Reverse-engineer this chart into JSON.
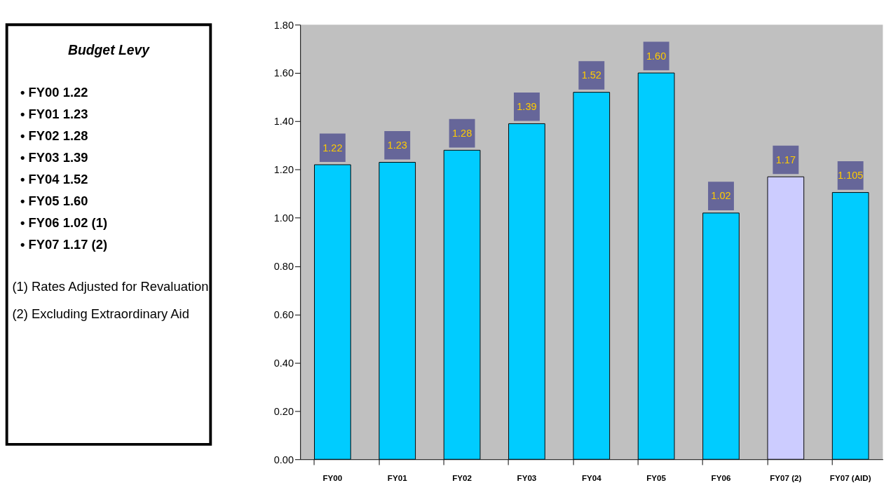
{
  "chart_data": {
    "type": "bar",
    "categories": [
      "FY00",
      "FY01",
      "FY02",
      "FY03",
      "FY04",
      "FY05",
      "FY06",
      "FY07 (2)",
      "FY07 (AID)"
    ],
    "values": [
      1.22,
      1.23,
      1.28,
      1.39,
      1.52,
      1.6,
      1.02,
      1.17,
      1.105
    ],
    "colors": [
      "#00ccff",
      "#00ccff",
      "#00ccff",
      "#00ccff",
      "#00ccff",
      "#00ccff",
      "#00ccff",
      "#ccccff",
      "#00ccff"
    ],
    "value_labels": [
      "1.22",
      "1.23",
      "1.28",
      "1.39",
      "1.52",
      "1.60",
      "1.02",
      "1.17",
      "1.105"
    ],
    "ylim": [
      0,
      1.8
    ],
    "yticks": [
      {
        "value": 0,
        "label": "0.00"
      },
      {
        "value": 0.2,
        "label": "0.20"
      },
      {
        "value": 0.4,
        "label": "0.40"
      },
      {
        "value": 0.6,
        "label": "0.60"
      },
      {
        "value": 0.8,
        "label": "0.80"
      },
      {
        "value": 1.0,
        "label": "1.00"
      },
      {
        "value": 1.2,
        "label": "1.20"
      },
      {
        "value": 1.4,
        "label": "1.40"
      },
      {
        "value": 1.6,
        "label": "1.60"
      },
      {
        "value": 1.8,
        "label": "1.80"
      }
    ],
    "grid": false,
    "legend": false,
    "annotations": [
      "Budget Levy",
      "• FY00 1.22",
      "• FY01 1.23",
      "• FY02 1.28",
      "• FY03 1.39",
      "• FY04 1.52",
      "• FY05 1.60",
      "• FY06 1.02 (1)",
      "• FY07 1.17 (2)",
      "(1) Rates Adjusted for Revaluation",
      "(2) Excluding Extraordinary Aid"
    ]
  }
}
